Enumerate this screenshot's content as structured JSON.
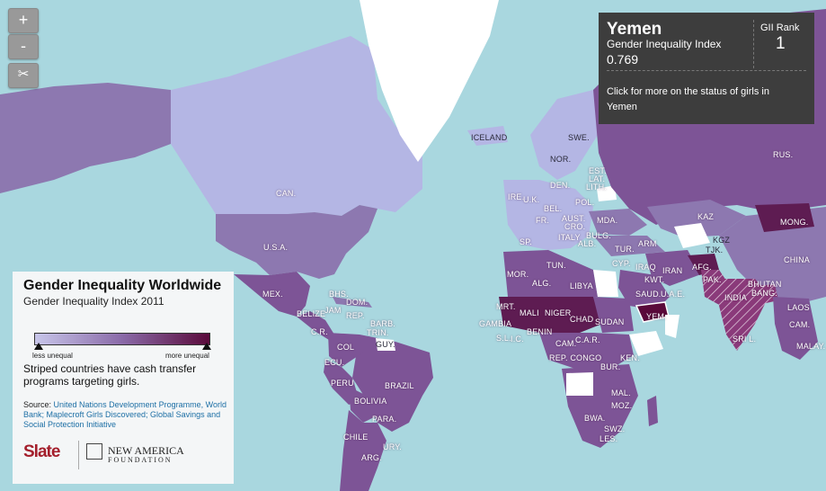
{
  "colors": {
    "ocean": "#a9d7df",
    "low": "#b4b6e4",
    "mid": "#8a6aa8",
    "high": "#5a0a3a",
    "nodata": "#ffffff"
  },
  "controls": {
    "zoom_in": "+",
    "zoom_out": "-",
    "scissors": "✂"
  },
  "tooltip": {
    "country": "Yemen",
    "metric": "Gender Inequality Index",
    "value": "0.769",
    "rank_label": "GII Rank",
    "rank": "1",
    "more": "Click for more on the status of girls in Yemen"
  },
  "legend": {
    "title": "Gender Inequality Worldwide",
    "subtitle": "Gender Inequality Index 2011",
    "low_label": "less unequal",
    "high_label": "more unequal",
    "note": "Striped countries have cash transfer programs targeting girls.",
    "source_prefix": "Source: ",
    "sources": "United Nations Development Programme, World Bank; Maplecroft Girls Discovered; Global Savings and Social Protection Initiative",
    "logo_slate": "Slate",
    "logo_na_name": "NEW AMERICA",
    "logo_na_sub": "FOUNDATION"
  },
  "labels": {
    "iceland": "ICELAND",
    "can": "CAN.",
    "usa": "U.S.A.",
    "mex": "MEX.",
    "bhs": "BHS.",
    "dom": "DOM.",
    "rep": "REP.",
    "jam": "JAM",
    "belize": "BELIZE",
    "cr": "C.R.",
    "barb": "BARB.",
    "trin": "TRIN.",
    "guy": "GUY.",
    "col": "COL",
    "ecu": "ECU.",
    "peru": "PERU",
    "brazil": "BRAZIL",
    "bolivia": "BOLIVIA",
    "para": "PARA.",
    "chile": "CHILE",
    "ury": "URY.",
    "arg": "ARG.",
    "swe": "SWE.",
    "nor": "NOR.",
    "est": "EST.",
    "lat": "LAT.",
    "lith": "LITH.",
    "den": "DEN.",
    "ire": "IRE.",
    "uk": "U.K.",
    "pol": "POL.",
    "bel": "BEL.",
    "fr": "FR.",
    "aust": "AUST.",
    "cro": "CRO.",
    "mda": "MDA.",
    "sp": "SP.",
    "italy": "ITALY",
    "bulg": "BULG.",
    "alb": "ALB.",
    "tur": "TUR.",
    "arm": "ARM",
    "kaz": "KAZ",
    "rus": "RUS.",
    "mong": "MONG.",
    "kgz": "KGZ",
    "tjk": "TJK.",
    "china": "CHINA",
    "afg": "AFG.",
    "pak": "PAK.",
    "iran": "IRAN",
    "iraq": "IRAQ",
    "kwt": "KWT.",
    "saud": "SAUD.",
    "uae": "U.A.E.",
    "yem": "YEM.",
    "bhutan": "BHUTAN",
    "bang": "BANG.",
    "india": "INDIA",
    "laos": "LAOS",
    "srl": "SRI L.",
    "cam": "CAM.",
    "malay": "MALAY.",
    "mor": "MOR.",
    "tun": "TUN.",
    "alg": "ALG.",
    "libya": "LIBYA",
    "mrt": "MRT.",
    "mali": "MALI",
    "niger": "NIGER",
    "chad": "CHAD",
    "sudan": "SUDAN",
    "gambia": "GAMBIA",
    "sl": "S.L.",
    "ic": "I.C.",
    "benin": "BENIN",
    "cam_af": "CAM.",
    "car": "C.A.R.",
    "rep_congo": "REP. CONGO",
    "bur": "BUR.",
    "ken": "KEN.",
    "mal": "MAL.",
    "moz": "MOZ.",
    "bwa": "BWA.",
    "swz": "SWZ.",
    "les": "LES.",
    "cyp": "CYP."
  }
}
